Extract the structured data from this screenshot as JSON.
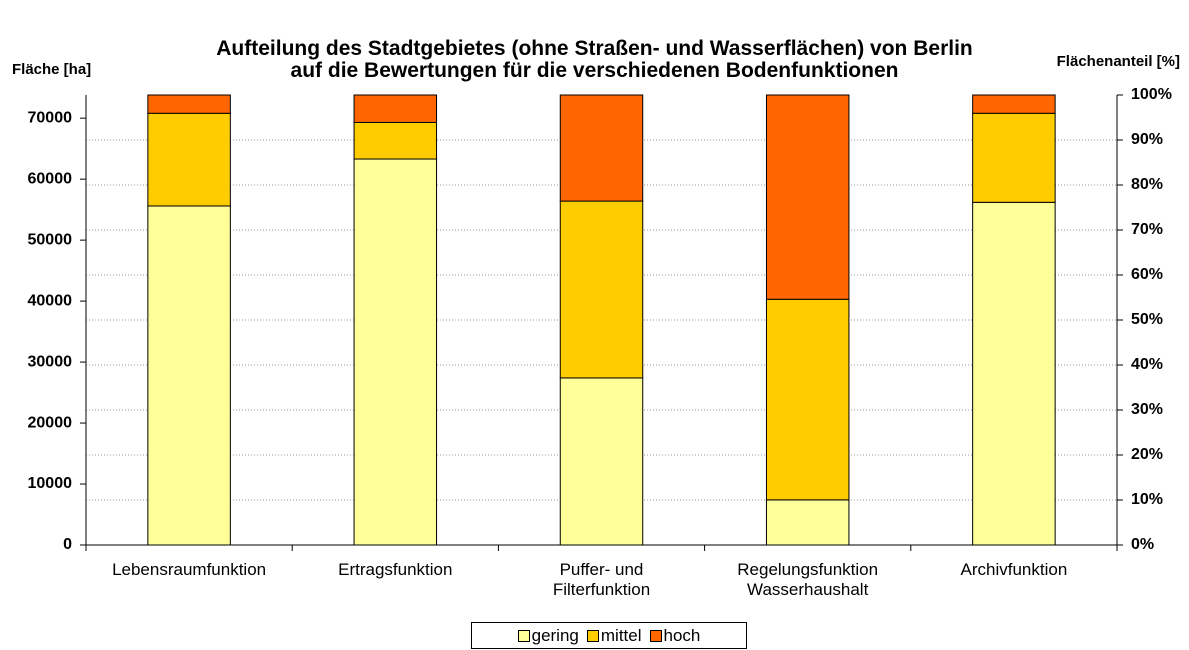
{
  "chart_data": {
    "type": "stacked_bar",
    "title": "Aufteilung des Stadtgebietes (ohne Straßen- und Wasserflächen) von Berlin\nauf die Bewertungen für die verschiedenen Bodenfunktionen",
    "y_label": "Fläche [ha]",
    "y2_label": "Flächenanteil [%]",
    "categories": [
      "Lebensraumfunktion",
      "Ertragsfunktion",
      "Puffer- und\nFilterfunktion",
      "Regelungsfunktion\nWasserhaushalt",
      "Archivfunktion"
    ],
    "series": [
      {
        "name": "gering",
        "color": "#ffff99",
        "values": [
          55600,
          63300,
          27400,
          7400,
          56200
        ]
      },
      {
        "name": "mittel",
        "color": "#ffcc00",
        "values": [
          15200,
          6000,
          29000,
          32900,
          14600
        ]
      },
      {
        "name": "hoch",
        "color": "#ff6600",
        "values": [
          3000,
          4500,
          17400,
          33500,
          3000
        ]
      }
    ],
    "ylim": [
      0,
      73800
    ],
    "yticks": [
      0,
      10000,
      20000,
      30000,
      40000,
      50000,
      60000,
      70000
    ],
    "y2lim": [
      0,
      100
    ],
    "y2ticks": [
      {
        "value": 0,
        "label": "0%"
      },
      {
        "value": 10,
        "label": "10%"
      },
      {
        "value": 20,
        "label": "20%"
      },
      {
        "value": 30,
        "label": "30%"
      },
      {
        "value": 40,
        "label": "40%"
      },
      {
        "value": 50,
        "label": "50%"
      },
      {
        "value": 60,
        "label": "60%"
      },
      {
        "value": 70,
        "label": "70%"
      },
      {
        "value": 80,
        "label": "80%"
      },
      {
        "value": 90,
        "label": "90%"
      },
      {
        "value": 100,
        "label": "100%"
      }
    ],
    "grid": true,
    "legend": "bottom"
  }
}
